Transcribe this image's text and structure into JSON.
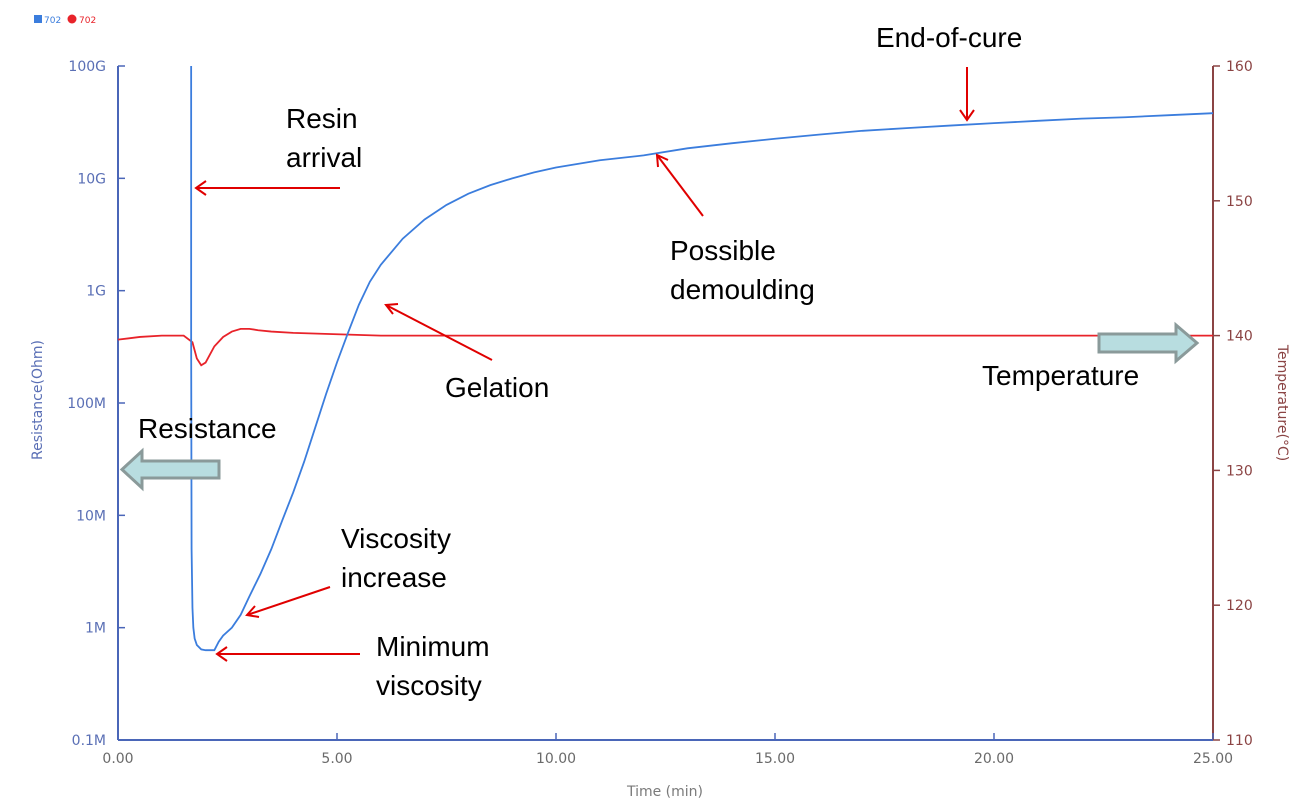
{
  "chart_data": {
    "type": "line",
    "title": "",
    "legend": {
      "placement": "top-left",
      "items": [
        {
          "label": "702",
          "marker": "square",
          "color": "#3b7ddd"
        },
        {
          "label": "702",
          "marker": "circle",
          "color": "#e8232a"
        }
      ]
    },
    "xlabel": "Time (min)",
    "xlim": [
      0,
      25
    ],
    "xticks": [
      {
        "value": 0,
        "label": "0.00"
      },
      {
        "value": 5,
        "label": "5.00"
      },
      {
        "value": 10,
        "label": "10.00"
      },
      {
        "value": 15,
        "label": "15.00"
      },
      {
        "value": 20,
        "label": "20.00"
      },
      {
        "value": 25,
        "label": "25.00"
      }
    ],
    "y_left": {
      "label": "Resistance(Ohm)",
      "scale": "log",
      "lim": [
        100000,
        100000000000
      ],
      "color": "#5a6fb5",
      "ticks": [
        {
          "value": 100000,
          "label": "0.1M"
        },
        {
          "value": 1000000,
          "label": "1M"
        },
        {
          "value": 10000000,
          "label": "10M"
        },
        {
          "value": 100000000,
          "label": "100M"
        },
        {
          "value": 1000000000,
          "label": "1G"
        },
        {
          "value": 10000000000,
          "label": "10G"
        },
        {
          "value": 100000000000,
          "label": "100G"
        }
      ]
    },
    "y_right": {
      "label": "Temperature(°C)",
      "scale": "linear",
      "lim": [
        110,
        160
      ],
      "color": "#8b4444",
      "ticks": [
        {
          "value": 110,
          "label": "110"
        },
        {
          "value": 120,
          "label": "120"
        },
        {
          "value": 130,
          "label": "130"
        },
        {
          "value": 140,
          "label": "140"
        },
        {
          "value": 150,
          "label": "150"
        },
        {
          "value": 160,
          "label": "160"
        }
      ]
    },
    "series": [
      {
        "axis": "left",
        "color": "#3b7ddd",
        "x": [
          1.67,
          1.67,
          1.68,
          1.7,
          1.72,
          1.75,
          1.8,
          1.9,
          2.0,
          2.1,
          2.2,
          2.3,
          2.4,
          2.6,
          2.8,
          3.0,
          3.25,
          3.5,
          3.75,
          4.0,
          4.25,
          4.5,
          4.75,
          5.0,
          5.25,
          5.5,
          5.75,
          6.0,
          6.5,
          7.0,
          7.5,
          8.0,
          8.5,
          9.0,
          9.5,
          10.0,
          11.0,
          12.0,
          13.0,
          14.0,
          15.0,
          16.0,
          17.0,
          18.0,
          19.0,
          20.0,
          21.0,
          22.0,
          23.0,
          24.0,
          25.0
        ],
        "y": [
          100000000000,
          400000000,
          5000000,
          1500000,
          1000000,
          800000,
          700000,
          640000,
          630000,
          630000,
          630000,
          750000,
          850000,
          1000000,
          1300000,
          1900000,
          3000000,
          5000000,
          9000000,
          16000000,
          30000000,
          60000000,
          120000000,
          230000000,
          420000000,
          750000000,
          1200000000,
          1700000000,
          2900000000,
          4300000000,
          5800000000,
          7300000000,
          8700000000,
          10000000000,
          11300000000,
          12500000000,
          14500000000,
          16000000000,
          18500000000,
          20500000000,
          22500000000,
          24500000000,
          26500000000,
          28000000000,
          29500000000,
          31000000000,
          32500000000,
          34000000000,
          35000000000,
          36500000000,
          38000000000
        ]
      },
      {
        "axis": "right",
        "color": "#e8232a",
        "x": [
          0,
          0.5,
          1.0,
          1.5,
          1.7,
          1.8,
          1.9,
          2.0,
          2.1,
          2.2,
          2.4,
          2.6,
          2.8,
          3.0,
          3.2,
          3.5,
          4.0,
          5.0,
          6.0,
          8.0,
          10.0,
          12.0,
          14.0,
          16.0,
          18.0,
          20.0,
          22.0,
          24.0,
          25.0
        ],
        "y": [
          139.7,
          139.9,
          140.0,
          140.0,
          139.5,
          138.3,
          137.8,
          138.0,
          138.6,
          139.2,
          139.9,
          140.3,
          140.5,
          140.5,
          140.4,
          140.3,
          140.2,
          140.1,
          140.0,
          140.0,
          140.0,
          140.0,
          140.0,
          140.0,
          140.0,
          140.0,
          140.0,
          140.0,
          140.0
        ]
      }
    ],
    "annotations": [
      {
        "lines": [
          "Resin",
          "arrival"
        ]
      },
      {
        "lines": [
          "Possible",
          "demoulding"
        ]
      },
      {
        "lines": [
          "End-of-cure"
        ]
      },
      {
        "lines": [
          "Gelation"
        ]
      },
      {
        "lines": [
          "Temperature"
        ]
      },
      {
        "lines": [
          "Resistance"
        ]
      },
      {
        "lines": [
          "Viscosity",
          "increase"
        ]
      },
      {
        "lines": [
          "Minimum",
          "viscosity"
        ]
      }
    ],
    "grid": false
  }
}
